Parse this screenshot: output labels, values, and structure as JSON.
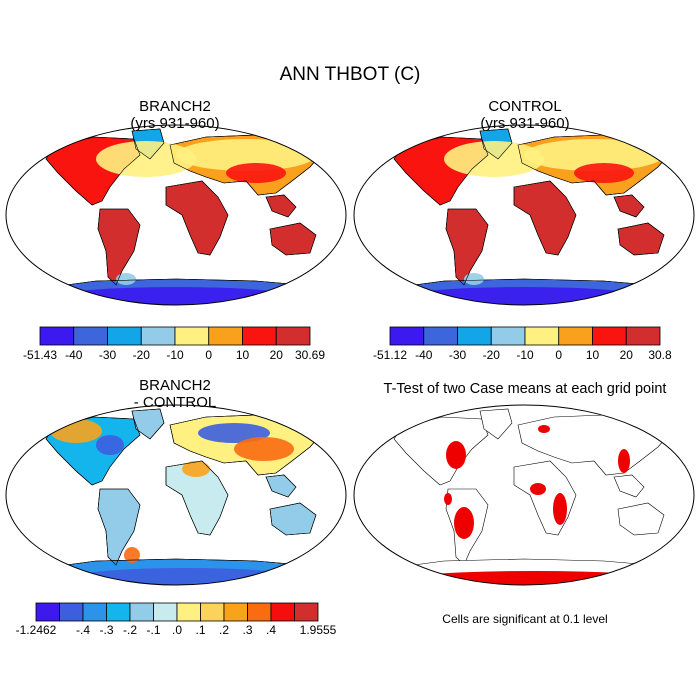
{
  "title": "ANN THBOT (C)",
  "colors": {
    "abs": [
      "#3b19ef",
      "#3d66dc",
      "#14a4e8",
      "#93cce8",
      "#fff181",
      "#f9a11d",
      "#f91410",
      "#d22e2e"
    ],
    "diff": [
      "#3d19ee",
      "#3d5edf",
      "#2b93ea",
      "#14b4ed",
      "#93cce8",
      "#c8ebef",
      "#fff181",
      "#fbd35b",
      "#f9a31c",
      "#fa6c12",
      "#f50e0e",
      "#d22e2e"
    ],
    "ttest": "#ee0000"
  },
  "panels": [
    {
      "id": "branch2",
      "title_line1": "BRANCH2",
      "title_line2": "(yrs 931-960)",
      "labelbar": [
        "-51.43",
        "-40",
        "-30",
        "-20",
        "-10",
        "0",
        "10",
        "20",
        "30.69"
      ]
    },
    {
      "id": "control",
      "title_line1": "CONTROL",
      "title_line2": "(yrs 931-960)",
      "labelbar": [
        "-51.12",
        "-40",
        "-30",
        "-20",
        "-10",
        "0",
        "10",
        "20",
        "30.8"
      ]
    },
    {
      "id": "difference",
      "title_line1": "BRANCH2",
      "title_line2": "- CONTROL",
      "labelbar": [
        "-1.2462",
        "-.4",
        "-.3",
        "-.2",
        "-.1",
        ".0",
        ".1",
        ".2",
        ".3",
        ".4",
        "1.9555"
      ]
    },
    {
      "id": "ttest",
      "title_line1": "T-Test of two Case means at each grid point",
      "note": "Cells are significant at 0.1 level"
    }
  ]
}
